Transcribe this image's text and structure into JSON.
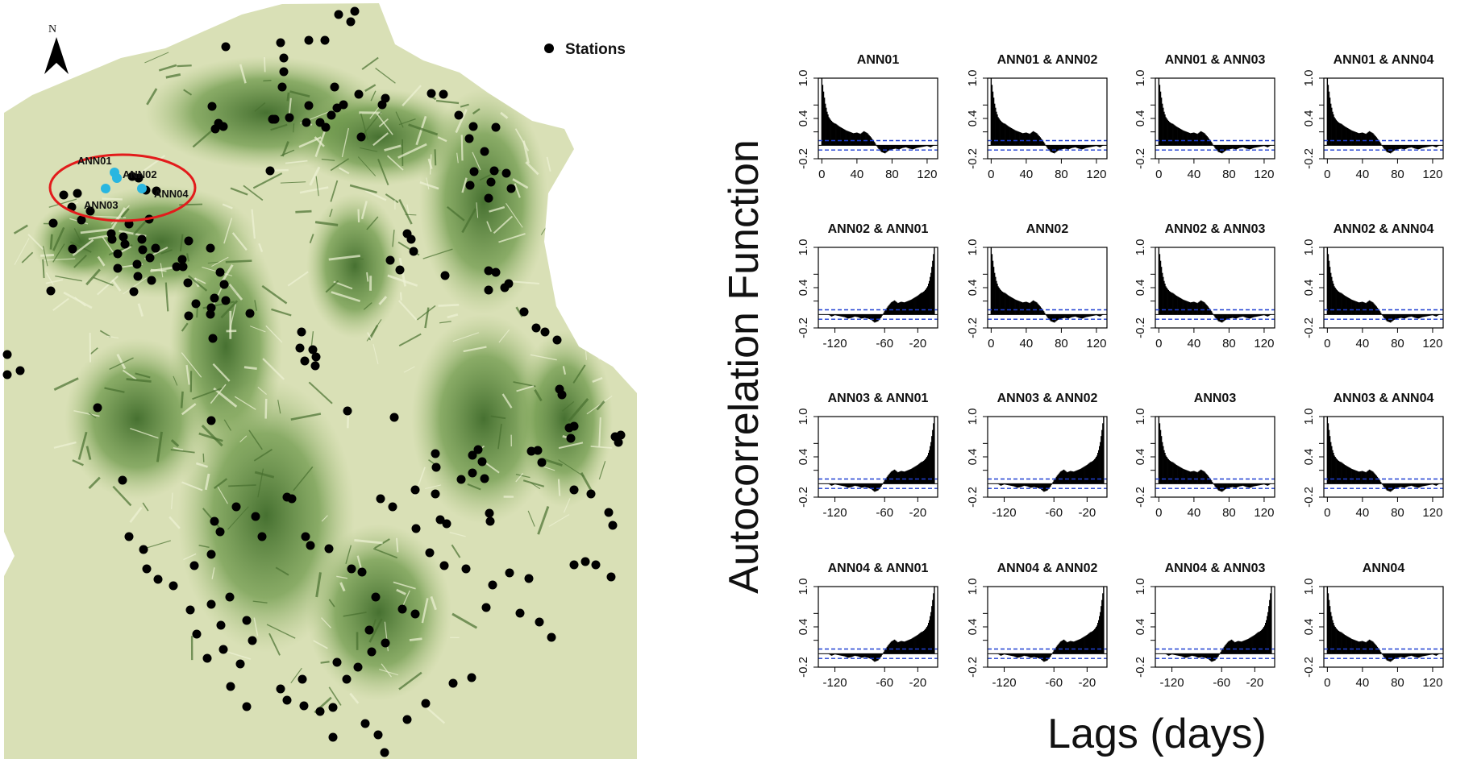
{
  "map": {
    "north_label": "N",
    "legend_label": "Stations",
    "highlight_labels": [
      "ANN01",
      "ANN02",
      "ANN03",
      "ANN04"
    ],
    "colors": {
      "terrain_light": "#d7dfb2",
      "terrain_dark": "#5f8a3c",
      "station": "#000000",
      "highlight_station": "#29b6e0",
      "highlight_ellipse": "#e21b1b"
    }
  },
  "chart_data": {
    "type": "line",
    "ylabel": "Autocorrelation Function",
    "xlabel": "Lags (days)",
    "ylim": [
      -0.2,
      1.0
    ],
    "yticks": [
      "-0.2",
      "0.4",
      "1.0"
    ],
    "yticks_minor": [
      "0.2",
      "0.6"
    ],
    "xticks_positive": [
      "0",
      "40",
      "80",
      "120"
    ],
    "xticks_negative": [
      "-120",
      "-60",
      "-20"
    ],
    "confidence_band": 0.07,
    "colors": {
      "bars": "#000000",
      "band": "#1f3fd1"
    },
    "panels": [
      {
        "title": "ANN01",
        "row": 0,
        "col": 0,
        "kind": "auto"
      },
      {
        "title": "ANN01 & ANN02",
        "row": 0,
        "col": 1,
        "kind": "auto"
      },
      {
        "title": "ANN01 & ANN03",
        "row": 0,
        "col": 2,
        "kind": "auto"
      },
      {
        "title": "ANN01 & ANN04",
        "row": 0,
        "col": 3,
        "kind": "auto"
      },
      {
        "title": "ANN02 & ANN01",
        "row": 1,
        "col": 0,
        "kind": "cross"
      },
      {
        "title": "ANN02",
        "row": 1,
        "col": 1,
        "kind": "auto"
      },
      {
        "title": "ANN02 & ANN03",
        "row": 1,
        "col": 2,
        "kind": "auto"
      },
      {
        "title": "ANN02 & ANN04",
        "row": 1,
        "col": 3,
        "kind": "auto"
      },
      {
        "title": "ANN03 & ANN01",
        "row": 2,
        "col": 0,
        "kind": "cross"
      },
      {
        "title": "ANN03 & ANN02",
        "row": 2,
        "col": 1,
        "kind": "cross"
      },
      {
        "title": "ANN03",
        "row": 2,
        "col": 2,
        "kind": "auto"
      },
      {
        "title": "ANN03 & ANN04",
        "row": 2,
        "col": 3,
        "kind": "auto"
      },
      {
        "title": "ANN04 & ANN01",
        "row": 3,
        "col": 0,
        "kind": "cross"
      },
      {
        "title": "ANN04 & ANN02",
        "row": 3,
        "col": 1,
        "kind": "cross"
      },
      {
        "title": "ANN04 & ANN03",
        "row": 3,
        "col": 2,
        "kind": "cross"
      },
      {
        "title": "ANN04",
        "row": 3,
        "col": 3,
        "kind": "auto"
      }
    ],
    "acf_profile": {
      "lags": [
        0,
        2,
        4,
        6,
        8,
        10,
        12,
        14,
        16,
        18,
        20,
        24,
        28,
        32,
        36,
        40,
        44,
        48,
        52,
        56,
        60,
        64,
        68,
        72,
        76,
        80,
        84,
        88,
        92,
        96,
        100,
        104,
        108,
        112,
        116,
        120,
        124,
        128
      ],
      "values": [
        1.0,
        0.8,
        0.62,
        0.5,
        0.42,
        0.38,
        0.35,
        0.33,
        0.32,
        0.3,
        0.28,
        0.25,
        0.22,
        0.2,
        0.18,
        0.19,
        0.17,
        0.21,
        0.18,
        0.12,
        0.05,
        -0.04,
        -0.1,
        -0.12,
        -0.08,
        -0.06,
        -0.05,
        -0.06,
        -0.04,
        -0.03,
        -0.05,
        -0.06,
        -0.04,
        -0.03,
        -0.02,
        -0.01,
        -0.03,
        0.0
      ]
    }
  }
}
